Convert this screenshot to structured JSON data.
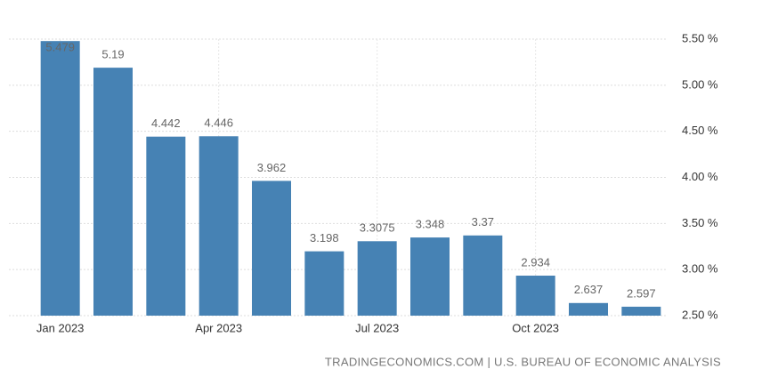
{
  "chart_data": {
    "type": "bar",
    "categories": [
      "Jan 2023",
      null,
      null,
      "Apr 2023",
      null,
      null,
      "Jul 2023",
      null,
      null,
      "Oct 2023",
      null,
      null
    ],
    "values": [
      5.479,
      5.19,
      4.442,
      4.446,
      3.962,
      3.198,
      3.3075,
      3.348,
      3.37,
      2.934,
      2.637,
      2.597
    ],
    "color": "#4682b4",
    "ylim": [
      2.5,
      5.5
    ],
    "yticks": [
      {
        "value": 2.5,
        "label": "2.50 %"
      },
      {
        "value": 3.0,
        "label": "3.00 %"
      },
      {
        "value": 3.5,
        "label": "3.50 %"
      },
      {
        "value": 4.0,
        "label": "4.00 %"
      },
      {
        "value": 4.5,
        "label": "4.50 %"
      },
      {
        "value": 5.0,
        "label": "5.00 %"
      },
      {
        "value": 5.5,
        "label": "5.50 %"
      }
    ],
    "grid": true,
    "source": "TRADINGECONOMICS.COM | U.S. BUREAU OF ECONOMIC ANALYSIS"
  }
}
